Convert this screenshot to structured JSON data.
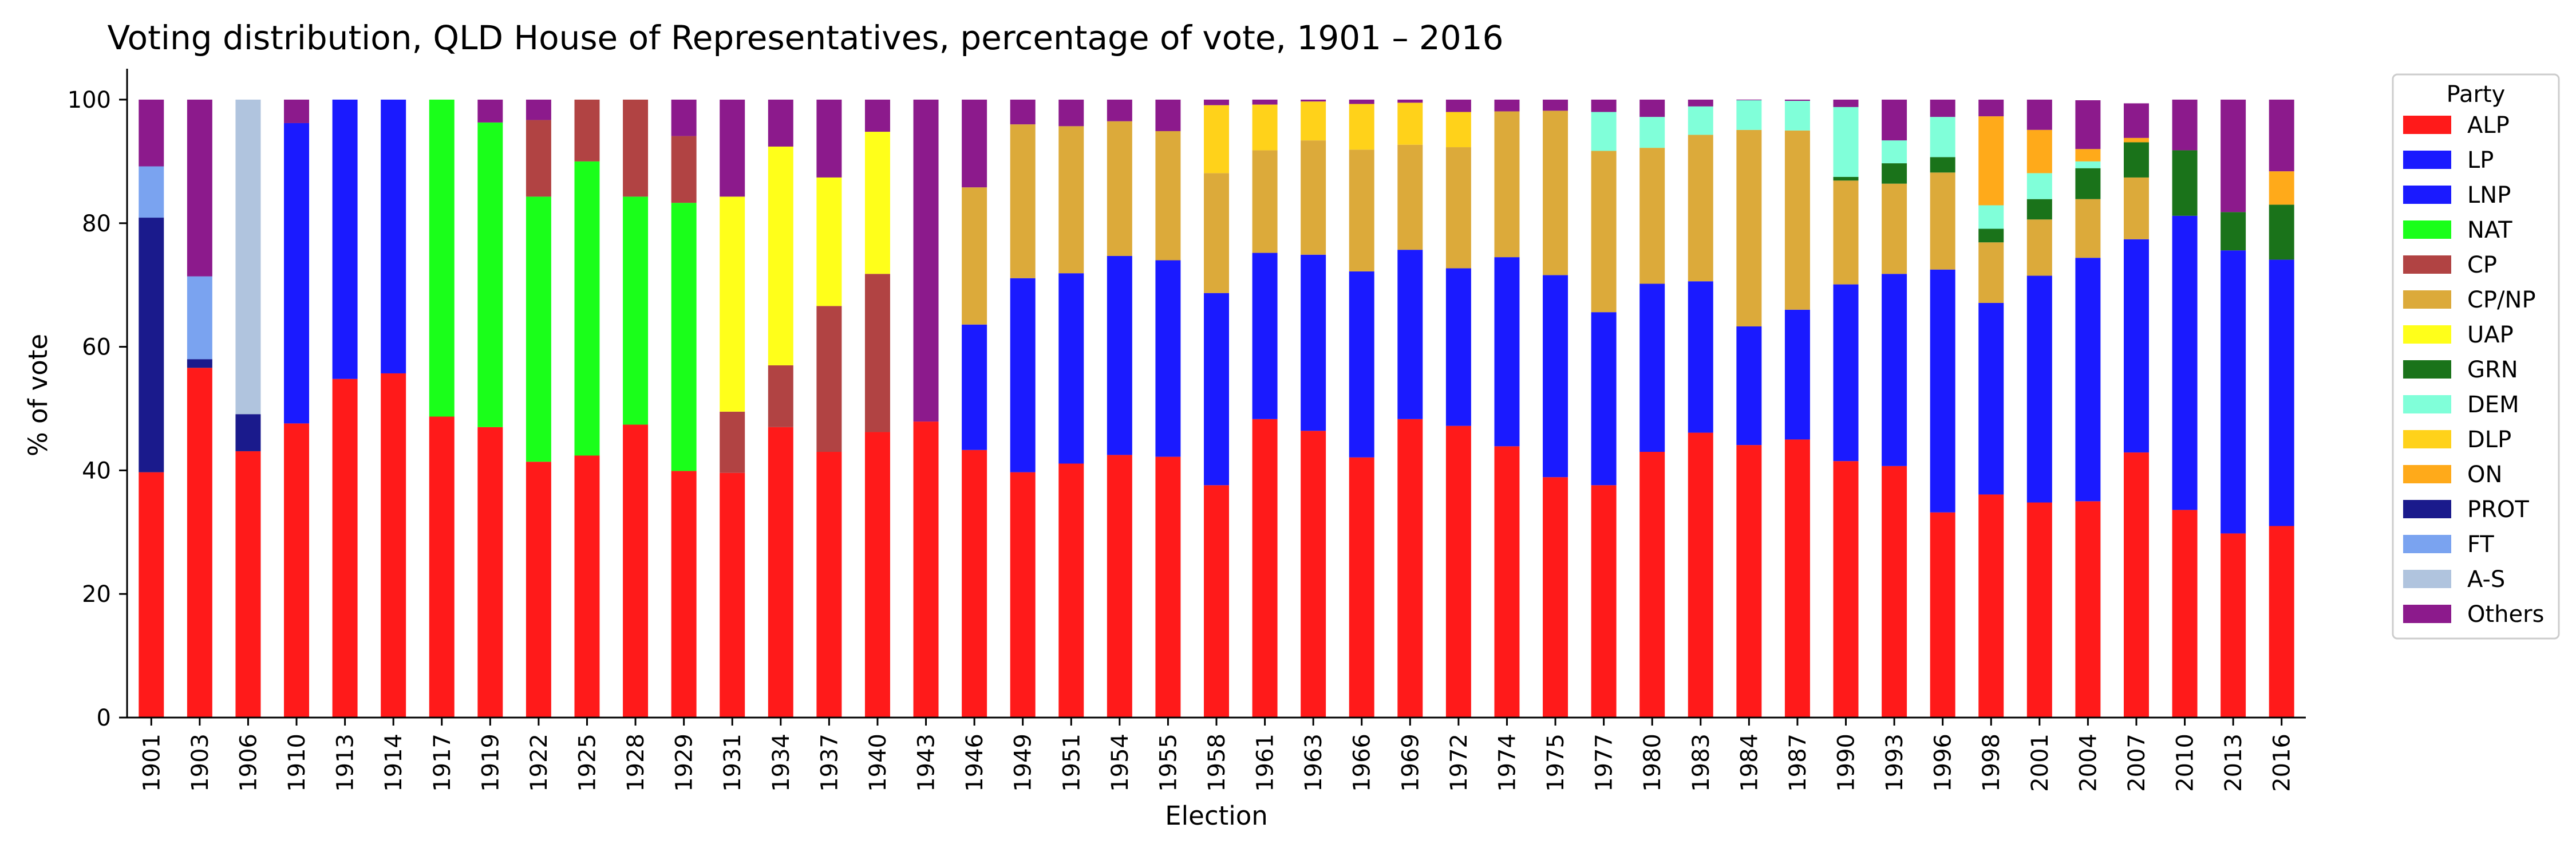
{
  "chart_data": {
    "type": "bar",
    "stacked": true,
    "title": "Voting distribution, QLD House of Representatives, percentage of vote, 1901 – 2016",
    "xlabel": "Election",
    "ylabel": "% of vote",
    "ylim": [
      0,
      105
    ],
    "yticks": [
      0,
      20,
      40,
      60,
      80,
      100
    ],
    "grid": false,
    "legend": {
      "title": "Party",
      "placement": "outside-right"
    },
    "categories": [
      "1901",
      "1903",
      "1906",
      "1910",
      "1913",
      "1914",
      "1917",
      "1919",
      "1922",
      "1925",
      "1928",
      "1929",
      "1931",
      "1934",
      "1937",
      "1940",
      "1943",
      "1946",
      "1949",
      "1951",
      "1954",
      "1955",
      "1958",
      "1961",
      "1963",
      "1966",
      "1969",
      "1972",
      "1974",
      "1975",
      "1977",
      "1980",
      "1983",
      "1984",
      "1987",
      "1990",
      "1993",
      "1996",
      "1998",
      "2001",
      "2004",
      "2007",
      "2010",
      "2013",
      "2016"
    ],
    "series": [
      {
        "name": "ALP",
        "color": "#ff1a1a",
        "values": [
          39.7,
          56.6,
          43.1,
          47.6,
          54.8,
          55.7,
          48.7,
          47.0,
          41.4,
          42.4,
          47.4,
          39.9,
          39.6,
          47.0,
          43.0,
          46.2,
          47.9,
          43.3,
          39.7,
          41.1,
          42.5,
          42.2,
          37.6,
          48.3,
          46.4,
          42.1,
          48.3,
          47.2,
          43.9,
          38.9,
          37.6,
          43.0,
          46.1,
          44.1,
          45.0,
          41.5,
          40.7,
          33.2,
          36.1,
          34.8,
          35.0,
          42.9,
          33.6,
          29.8,
          31.0
        ]
      },
      {
        "name": "LP",
        "color": "#1a1aff",
        "values": [
          0,
          0,
          0,
          48.6,
          45.2,
          44.3,
          0,
          0,
          0,
          0,
          0,
          0,
          0,
          0,
          0,
          0,
          0,
          20.3,
          31.4,
          30.8,
          32.2,
          31.8,
          31.1,
          26.9,
          28.5,
          30.1,
          27.4,
          25.5,
          30.6,
          32.7,
          28.0,
          27.2,
          24.5,
          19.2,
          21.0,
          28.6,
          31.1,
          39.3,
          31.0,
          36.7,
          39.4,
          34.5,
          0,
          0,
          0
        ]
      },
      {
        "name": "LNP",
        "color": "#1a1aff",
        "values": [
          0,
          0,
          0,
          0,
          0,
          0,
          0,
          0,
          0,
          0,
          0,
          0,
          0,
          0,
          0,
          0,
          0,
          0,
          0,
          0,
          0,
          0,
          0,
          0,
          0,
          0,
          0,
          0,
          0,
          0,
          0,
          0,
          0,
          0,
          0,
          0,
          0,
          0,
          0,
          0,
          0,
          0,
          47.6,
          45.8,
          43.1
        ]
      },
      {
        "name": "NAT",
        "color": "#1aff1a",
        "values": [
          0,
          0,
          0,
          0,
          0,
          0,
          51.3,
          49.3,
          42.9,
          47.6,
          36.9,
          43.4,
          0,
          0,
          0,
          0,
          0,
          0,
          0,
          0,
          0,
          0,
          0,
          0,
          0,
          0,
          0,
          0,
          0,
          0,
          0,
          0,
          0,
          0,
          0,
          0,
          0,
          0,
          0,
          0,
          0,
          0,
          0,
          0,
          0
        ]
      },
      {
        "name": "CP",
        "color": "#b14343",
        "values": [
          0,
          0,
          0,
          0,
          0,
          0,
          0,
          0,
          12.4,
          10.0,
          15.7,
          10.8,
          9.9,
          10.0,
          23.6,
          25.6,
          0,
          0,
          0,
          0,
          0,
          0,
          0,
          0,
          0,
          0,
          0,
          0,
          0,
          0,
          0,
          0,
          0,
          0,
          0,
          0,
          0,
          0,
          0,
          0,
          0,
          0,
          0,
          0,
          0
        ]
      },
      {
        "name": "CP/NP",
        "color": "#dcaa3a",
        "values": [
          0,
          0,
          0,
          0,
          0,
          0,
          0,
          0,
          0,
          0,
          0,
          0,
          0,
          0,
          0,
          0,
          0,
          22.2,
          24.9,
          23.8,
          21.8,
          20.9,
          19.4,
          16.6,
          18.5,
          19.7,
          17.0,
          19.6,
          23.6,
          26.6,
          26.1,
          22.0,
          23.7,
          31.8,
          29.0,
          16.8,
          14.6,
          15.7,
          9.8,
          9.1,
          9.5,
          10.0,
          0,
          0,
          0
        ]
      },
      {
        "name": "UAP",
        "color": "#ffff1a",
        "values": [
          0,
          0,
          0,
          0,
          0,
          0,
          0,
          0,
          0,
          0,
          0,
          0,
          34.8,
          35.4,
          20.8,
          23.0,
          0,
          0,
          0,
          0,
          0,
          0,
          0,
          0,
          0,
          0,
          0,
          0,
          0,
          0,
          0,
          0,
          0,
          0,
          0,
          0,
          0,
          0,
          0,
          0,
          0,
          0,
          0,
          0,
          0
        ]
      },
      {
        "name": "GRN",
        "color": "#1a731a",
        "values": [
          0,
          0,
          0,
          0,
          0,
          0,
          0,
          0,
          0,
          0,
          0,
          0,
          0,
          0,
          0,
          0,
          0,
          0,
          0,
          0,
          0,
          0,
          0,
          0,
          0,
          0,
          0,
          0,
          0,
          0,
          0,
          0,
          0,
          0,
          0,
          0.6,
          3.3,
          2.5,
          2.2,
          3.3,
          5.0,
          5.7,
          10.6,
          6.2,
          8.9
        ]
      },
      {
        "name": "DEM",
        "color": "#80ffd9",
        "values": [
          0,
          0,
          0,
          0,
          0,
          0,
          0,
          0,
          0,
          0,
          0,
          0,
          0,
          0,
          0,
          0,
          0,
          0,
          0,
          0,
          0,
          0,
          0,
          0,
          0,
          0,
          0,
          0,
          0,
          0,
          6.3,
          5.0,
          4.6,
          4.8,
          4.8,
          11.3,
          3.7,
          6.5,
          3.8,
          4.2,
          1.1,
          0,
          0,
          0,
          0
        ]
      },
      {
        "name": "DLP",
        "color": "#ffd21a",
        "values": [
          0,
          0,
          0,
          0,
          0,
          0,
          0,
          0,
          0,
          0,
          0,
          0,
          0,
          0,
          0,
          0,
          0,
          0,
          0,
          0,
          0,
          0,
          11.0,
          7.4,
          6.3,
          7.4,
          6.8,
          5.7,
          0,
          0,
          0,
          0,
          0,
          0,
          0,
          0,
          0,
          0,
          0,
          0,
          0,
          0,
          0,
          0,
          0
        ]
      },
      {
        "name": "ON",
        "color": "#ffaa1a",
        "values": [
          0,
          0,
          0,
          0,
          0,
          0,
          0,
          0,
          0,
          0,
          0,
          0,
          0,
          0,
          0,
          0,
          0,
          0,
          0,
          0,
          0,
          0,
          0,
          0,
          0,
          0,
          0,
          0,
          0,
          0,
          0,
          0,
          0,
          0,
          0,
          0,
          0,
          0,
          14.4,
          7.0,
          2.0,
          0.7,
          0,
          0,
          5.4
        ]
      },
      {
        "name": "PROT",
        "color": "#1a1a8c",
        "values": [
          41.2,
          1.4,
          6.0,
          0,
          0,
          0,
          0,
          0,
          0,
          0,
          0,
          0,
          0,
          0,
          0,
          0,
          0,
          0,
          0,
          0,
          0,
          0,
          0,
          0,
          0,
          0,
          0,
          0,
          0,
          0,
          0,
          0,
          0,
          0,
          0,
          0,
          0,
          0,
          0,
          0,
          0,
          0,
          0,
          0,
          0
        ]
      },
      {
        "name": "FT",
        "color": "#7aa3f0",
        "values": [
          8.3,
          13.4,
          0,
          0,
          0,
          0,
          0,
          0,
          0,
          0,
          0,
          0,
          0,
          0,
          0,
          0,
          0,
          0,
          0,
          0,
          0,
          0,
          0,
          0,
          0,
          0,
          0,
          0,
          0,
          0,
          0,
          0,
          0,
          0,
          0,
          0,
          0,
          0,
          0,
          0,
          0,
          0,
          0,
          0,
          0
        ]
      },
      {
        "name": "A-S",
        "color": "#b0c4de",
        "values": [
          0,
          0,
          50.9,
          0,
          0,
          0,
          0,
          0,
          0,
          0,
          0,
          0,
          0,
          0,
          0,
          0,
          0,
          0,
          0,
          0,
          0,
          0,
          0,
          0,
          0,
          0,
          0,
          0,
          0,
          0,
          0,
          0,
          0,
          0,
          0,
          0,
          0,
          0,
          0,
          0,
          0,
          0,
          0,
          0,
          0
        ]
      },
      {
        "name": "Others",
        "color": "#8c1a8c",
        "values": [
          10.8,
          28.6,
          0,
          3.8,
          0,
          0,
          0,
          3.7,
          3.3,
          0,
          0,
          5.9,
          15.7,
          7.6,
          12.6,
          5.2,
          52.1,
          14.2,
          4.0,
          4.3,
          3.5,
          5.1,
          0.9,
          0.8,
          0.3,
          0.7,
          0.5,
          2.0,
          1.9,
          1.8,
          2.0,
          2.8,
          1.1,
          0.1,
          0.2,
          1.2,
          6.6,
          2.8,
          2.7,
          4.9,
          7.9,
          5.6,
          8.2,
          18.2,
          11.6
        ]
      }
    ]
  }
}
